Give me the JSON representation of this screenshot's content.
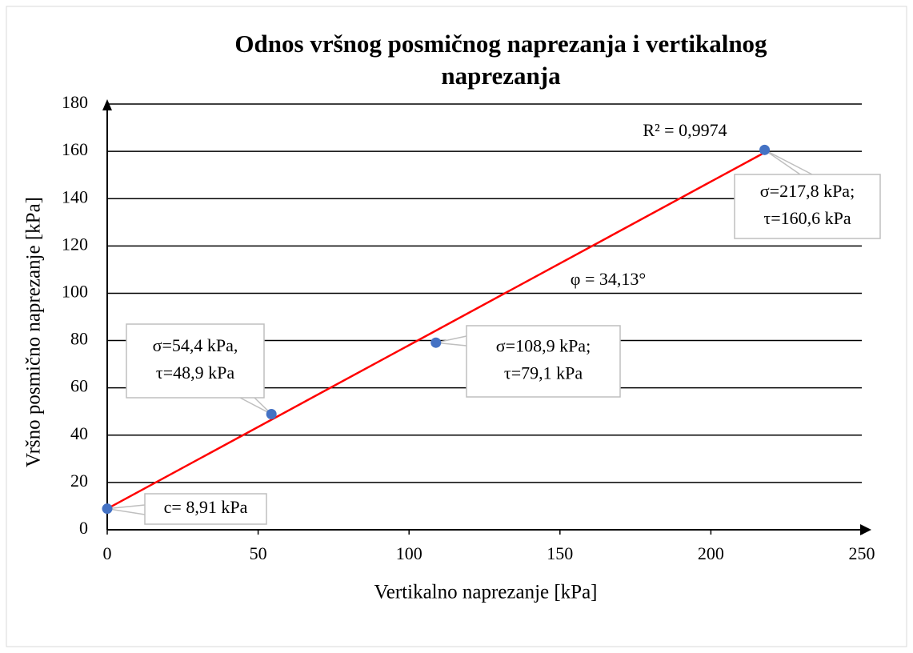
{
  "chart_data": {
    "type": "scatter",
    "title": [
      "Odnos vršnog posmičnog naprezanja  i vertikalnog",
      "naprezanja"
    ],
    "x_label": "Vertikalno naprezanje  [kPa]",
    "y_label": "Vršno posmično  naprezanje  [kPa]",
    "series": [
      {
        "name": "points",
        "color": "#4472c4",
        "x": [
          0,
          54.4,
          108.9,
          217.8
        ],
        "values": [
          8.91,
          48.9,
          79.1,
          160.6
        ]
      }
    ],
    "trendline": {
      "color": "#ff0000",
      "x": [
        0,
        217.8
      ],
      "values": [
        8.91,
        159.5
      ]
    },
    "point_labels": [
      [
        "c= 8,91 kPa"
      ],
      [
        "σ=54,4 kPa,",
        "τ=48,9 kPa"
      ],
      [
        "σ=108,9 kPa;",
        "τ=79,1 kPa"
      ],
      [
        "σ=217,8 kPa;",
        "τ=160,6 kPa"
      ]
    ],
    "annotations": [
      "R² = 0,9974",
      "φ = 34,13°"
    ],
    "xlim": [
      0,
      250
    ],
    "xticks": [
      0,
      50,
      100,
      150,
      200,
      250
    ],
    "ylim": [
      0,
      180
    ],
    "yticks": [
      0,
      20,
      40,
      60,
      80,
      100,
      120,
      140,
      160,
      180
    ],
    "grid": true
  }
}
